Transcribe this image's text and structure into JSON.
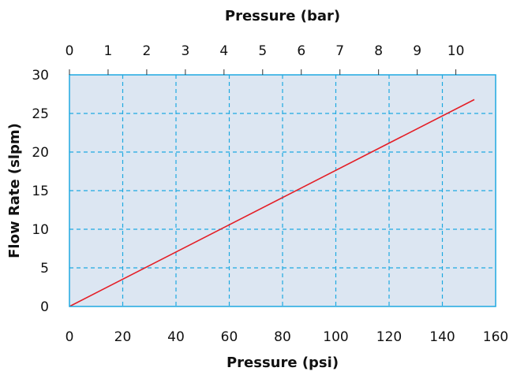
{
  "chart_data": {
    "type": "line",
    "title": "",
    "xlabel": "Pressure (psi)",
    "ylabel": "Flow Rate (slpm)",
    "x2label": "Pressure (bar)",
    "xlim": [
      0,
      160
    ],
    "ylim": [
      0,
      30
    ],
    "x2lim": [
      0,
      11.03
    ],
    "xticks": [
      0,
      20,
      40,
      60,
      80,
      100,
      120,
      140,
      160
    ],
    "yticks": [
      0,
      5,
      10,
      15,
      20,
      25,
      30
    ],
    "x2ticks": [
      0,
      1,
      2,
      3,
      4,
      5,
      6,
      7,
      8,
      9,
      10
    ],
    "grid": true,
    "colors": {
      "line": "#e41e26",
      "grid": "#1ea9e1",
      "plot_bg": "#dce6f2",
      "frame": "#1ea9e1"
    },
    "series": [
      {
        "x": [
          0,
          152
        ],
        "y": [
          0,
          26.8
        ]
      }
    ]
  }
}
